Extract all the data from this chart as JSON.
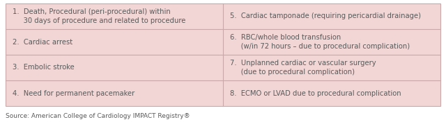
{
  "rows": [
    {
      "left": "1.  Death, Procedural (peri-procedural) within\n     30 days of procedure and related to procedure",
      "right": "5.  Cardiac tamponade (requiring pericardial drainage)"
    },
    {
      "left": "2.  Cardiac arrest",
      "right": "6.  RBC/whole blood transfusion\n     (w/in 72 hours – due to procedural complication)"
    },
    {
      "left": "3.  Embolic stroke",
      "right": "7.  Unplanned cardiac or vascular surgery\n     (due to procedural complication)"
    },
    {
      "left": "4.  Need for permanent pacemaker",
      "right": "8.  ECMO or LVAD due to procedural complication"
    }
  ],
  "source": "Source: American College of Cardiology IMPACT Registry®",
  "bg_color": "#f2d5d5",
  "border_color": "#c8a8a8",
  "text_color": "#5a5a5a",
  "source_color": "#5a5a5a",
  "cell_font_size": 7.2,
  "source_font_size": 6.5,
  "fig_width": 6.4,
  "fig_height": 1.89
}
